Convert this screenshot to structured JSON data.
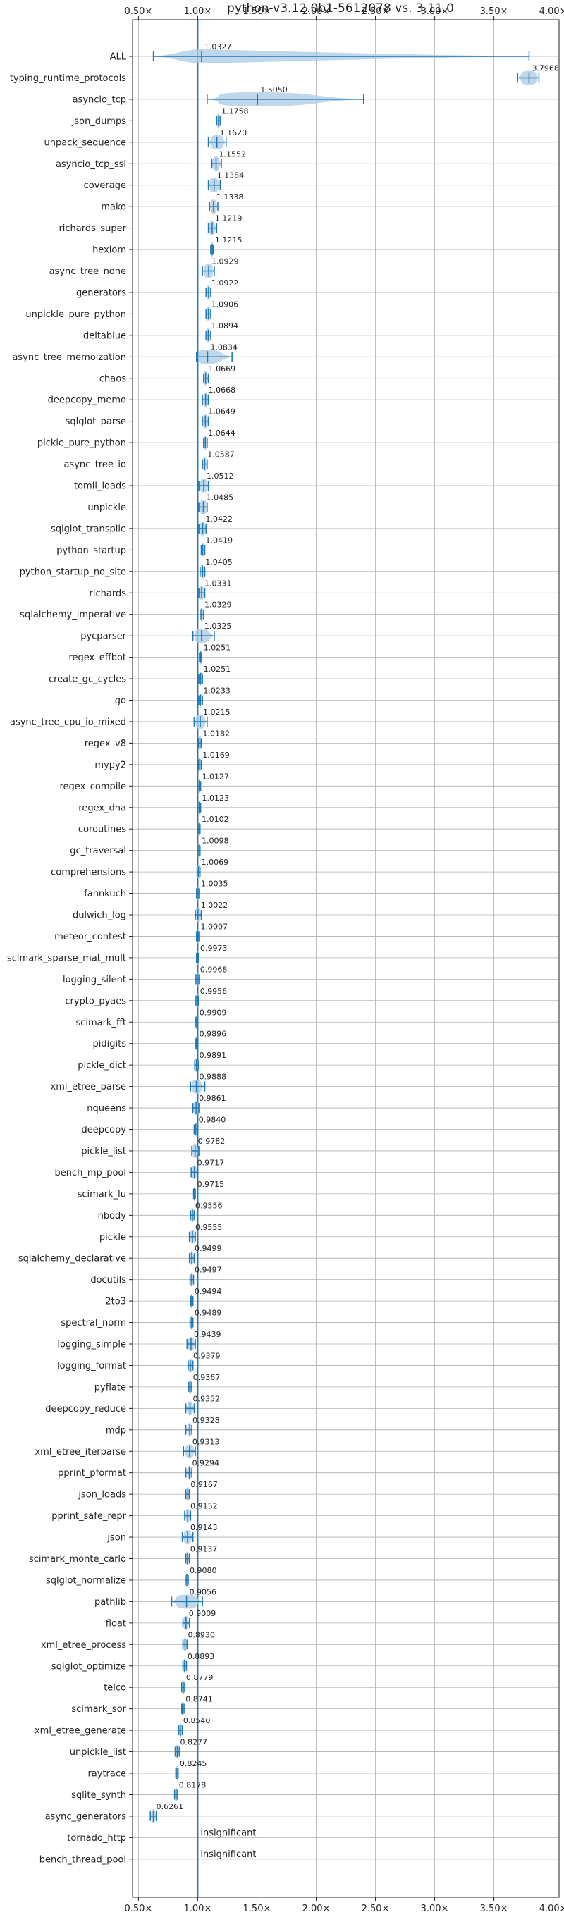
{
  "colors": {
    "accent": "#1f77b4",
    "violin": "#aecde6",
    "grid": "#b0b0b0"
  },
  "chart_data": {
    "type": "violin",
    "title": "python-v3.12.0b1-5612078 vs. 3.11.0",
    "xlim": [
      0.45,
      4.05
    ],
    "x_ticks": [
      0.5,
      1.0,
      1.5,
      2.0,
      2.5,
      3.0,
      3.5,
      4.0
    ],
    "x_tick_labels": [
      "0.50×",
      "1.00×",
      "1.50×",
      "2.00×",
      "2.50×",
      "3.00×",
      "3.50×",
      "4.00×"
    ],
    "x_tick_position": "top and bottom",
    "grid": true,
    "reference_line": 1.0,
    "insignificant_label": "insignificant",
    "benchmarks": [
      {
        "name": "ALL",
        "value": 1.0327,
        "label": "1.0327",
        "lo": 0.6261,
        "hi": 3.7968,
        "spread": 0.13
      },
      {
        "name": "typing_runtime_protocols",
        "value": 3.7968,
        "label": "3.7968",
        "lo": 3.7,
        "hi": 3.88,
        "spread": 0.09
      },
      {
        "name": "asyncio_tcp",
        "value": 1.505,
        "label": "1.5050",
        "lo": 1.08,
        "hi": 2.4,
        "spread": 0.5
      },
      {
        "name": "json_dumps",
        "value": 1.1758,
        "label": "1.1758",
        "lo": 1.16,
        "hi": 1.19,
        "spread": 0.02
      },
      {
        "name": "unpack_sequence",
        "value": 1.162,
        "label": "1.1620",
        "lo": 1.09,
        "hi": 1.24,
        "spread": 0.07
      },
      {
        "name": "asyncio_tcp_ssl",
        "value": 1.1552,
        "label": "1.1552",
        "lo": 1.12,
        "hi": 1.2,
        "spread": 0.04
      },
      {
        "name": "coverage",
        "value": 1.1384,
        "label": "1.1384",
        "lo": 1.09,
        "hi": 1.19,
        "spread": 0.05
      },
      {
        "name": "mako",
        "value": 1.1338,
        "label": "1.1338",
        "lo": 1.1,
        "hi": 1.17,
        "spread": 0.035
      },
      {
        "name": "richards_super",
        "value": 1.1219,
        "label": "1.1219",
        "lo": 1.09,
        "hi": 1.16,
        "spread": 0.035
      },
      {
        "name": "hexiom",
        "value": 1.1215,
        "label": "1.1215",
        "lo": 1.11,
        "hi": 1.13,
        "spread": 0.01
      },
      {
        "name": "async_tree_none",
        "value": 1.0929,
        "label": "1.0929",
        "lo": 1.04,
        "hi": 1.14,
        "spread": 0.05
      },
      {
        "name": "generators",
        "value": 1.0922,
        "label": "1.0922",
        "lo": 1.07,
        "hi": 1.11,
        "spread": 0.02
      },
      {
        "name": "unpickle_pure_python",
        "value": 1.0906,
        "label": "1.0906",
        "lo": 1.07,
        "hi": 1.11,
        "spread": 0.02
      },
      {
        "name": "deltablue",
        "value": 1.0894,
        "label": "1.0894",
        "lo": 1.07,
        "hi": 1.11,
        "spread": 0.02
      },
      {
        "name": "async_tree_memoization",
        "value": 1.0834,
        "label": "1.0834",
        "lo": 0.99,
        "hi": 1.29,
        "spread": 0.13
      },
      {
        "name": "chaos",
        "value": 1.0669,
        "label": "1.0669",
        "lo": 1.05,
        "hi": 1.09,
        "spread": 0.02
      },
      {
        "name": "deepcopy_memo",
        "value": 1.0668,
        "label": "1.0668",
        "lo": 1.04,
        "hi": 1.09,
        "spread": 0.03
      },
      {
        "name": "sqlglot_parse",
        "value": 1.0649,
        "label": "1.0649",
        "lo": 1.04,
        "hi": 1.09,
        "spread": 0.03
      },
      {
        "name": "pickle_pure_python",
        "value": 1.0644,
        "label": "1.0644",
        "lo": 1.05,
        "hi": 1.08,
        "spread": 0.015
      },
      {
        "name": "async_tree_io",
        "value": 1.0587,
        "label": "1.0587",
        "lo": 1.04,
        "hi": 1.08,
        "spread": 0.02
      },
      {
        "name": "tomli_loads",
        "value": 1.0512,
        "label": "1.0512",
        "lo": 1.01,
        "hi": 1.09,
        "spread": 0.04
      },
      {
        "name": "unpickle",
        "value": 1.0485,
        "label": "1.0485",
        "lo": 1.01,
        "hi": 1.08,
        "spread": 0.04
      },
      {
        "name": "sqlglot_transpile",
        "value": 1.0422,
        "label": "1.0422",
        "lo": 1.01,
        "hi": 1.07,
        "spread": 0.03
      },
      {
        "name": "python_startup",
        "value": 1.0419,
        "label": "1.0419",
        "lo": 1.03,
        "hi": 1.06,
        "spread": 0.015
      },
      {
        "name": "python_startup_no_site",
        "value": 1.0405,
        "label": "1.0405",
        "lo": 1.02,
        "hi": 1.06,
        "spread": 0.02
      },
      {
        "name": "richards",
        "value": 1.0331,
        "label": "1.0331",
        "lo": 1.01,
        "hi": 1.06,
        "spread": 0.025
      },
      {
        "name": "sqlalchemy_imperative",
        "value": 1.0329,
        "label": "1.0329",
        "lo": 1.02,
        "hi": 1.05,
        "spread": 0.015
      },
      {
        "name": "pycparser",
        "value": 1.0325,
        "label": "1.0325",
        "lo": 0.96,
        "hi": 1.14,
        "spread": 0.08
      },
      {
        "name": "regex_effbot",
        "value": 1.0251,
        "label": "1.0251",
        "lo": 1.015,
        "hi": 1.035,
        "spread": 0.01
      },
      {
        "name": "create_gc_cycles",
        "value": 1.0251,
        "label": "1.0251",
        "lo": 1.01,
        "hi": 1.04,
        "spread": 0.012
      },
      {
        "name": "go",
        "value": 1.0233,
        "label": "1.0233",
        "lo": 1.01,
        "hi": 1.04,
        "spread": 0.012
      },
      {
        "name": "async_tree_cpu_io_mixed",
        "value": 1.0215,
        "label": "1.0215",
        "lo": 0.97,
        "hi": 1.08,
        "spread": 0.05
      },
      {
        "name": "regex_v8",
        "value": 1.0182,
        "label": "1.0182",
        "lo": 1.005,
        "hi": 1.03,
        "spread": 0.012
      },
      {
        "name": "mypy2",
        "value": 1.0169,
        "label": "1.0169",
        "lo": 1.005,
        "hi": 1.03,
        "spread": 0.012
      },
      {
        "name": "regex_compile",
        "value": 1.0127,
        "label": "1.0127",
        "lo": 1.0,
        "hi": 1.025,
        "spread": 0.012
      },
      {
        "name": "regex_dna",
        "value": 1.0123,
        "label": "1.0123",
        "lo": 1.0,
        "hi": 1.025,
        "spread": 0.012
      },
      {
        "name": "coroutines",
        "value": 1.0102,
        "label": "1.0102",
        "lo": 1.0,
        "hi": 1.02,
        "spread": 0.01
      },
      {
        "name": "gc_traversal",
        "value": 1.0098,
        "label": "1.0098",
        "lo": 0.998,
        "hi": 1.02,
        "spread": 0.01
      },
      {
        "name": "comprehensions",
        "value": 1.0069,
        "label": "1.0069",
        "lo": 0.995,
        "hi": 1.02,
        "spread": 0.012
      },
      {
        "name": "fannkuch",
        "value": 1.0035,
        "label": "1.0035",
        "lo": 0.99,
        "hi": 1.015,
        "spread": 0.012
      },
      {
        "name": "dulwich_log",
        "value": 1.0022,
        "label": "1.0022",
        "lo": 0.98,
        "hi": 1.03,
        "spread": 0.025
      },
      {
        "name": "meteor_contest",
        "value": 1.0007,
        "label": "1.0007",
        "lo": 0.99,
        "hi": 1.01,
        "spread": 0.01
      },
      {
        "name": "scimark_sparse_mat_mult",
        "value": 0.9973,
        "label": "0.9973",
        "lo": 0.99,
        "hi": 1.005,
        "spread": 0.008
      },
      {
        "name": "logging_silent",
        "value": 0.9968,
        "label": "0.9968",
        "lo": 0.985,
        "hi": 1.01,
        "spread": 0.01
      },
      {
        "name": "crypto_pyaes",
        "value": 0.9956,
        "label": "0.9956",
        "lo": 0.985,
        "hi": 1.005,
        "spread": 0.008
      },
      {
        "name": "scimark_fft",
        "value": 0.9909,
        "label": "0.9909",
        "lo": 0.98,
        "hi": 1.0,
        "spread": 0.008
      },
      {
        "name": "pidigits",
        "value": 0.9896,
        "label": "0.9896",
        "lo": 0.98,
        "hi": 1.0,
        "spread": 0.008
      },
      {
        "name": "pickle_dict",
        "value": 0.9891,
        "label": "0.9891",
        "lo": 0.975,
        "hi": 1.005,
        "spread": 0.01
      },
      {
        "name": "xml_etree_parse",
        "value": 0.9888,
        "label": "0.9888",
        "lo": 0.94,
        "hi": 1.06,
        "spread": 0.05
      },
      {
        "name": "nqueens",
        "value": 0.9861,
        "label": "0.9861",
        "lo": 0.96,
        "hi": 1.01,
        "spread": 0.025
      },
      {
        "name": "deepcopy",
        "value": 0.984,
        "label": "0.9840",
        "lo": 0.97,
        "hi": 1.0,
        "spread": 0.015
      },
      {
        "name": "pickle_list",
        "value": 0.9782,
        "label": "0.9782",
        "lo": 0.95,
        "hi": 1.01,
        "spread": 0.03
      },
      {
        "name": "bench_mp_pool",
        "value": 0.9717,
        "label": "0.9717",
        "lo": 0.945,
        "hi": 1.0,
        "spread": 0.025
      },
      {
        "name": "scimark_lu",
        "value": 0.9715,
        "label": "0.9715",
        "lo": 0.965,
        "hi": 0.98,
        "spread": 0.006
      },
      {
        "name": "nbody",
        "value": 0.9556,
        "label": "0.9556",
        "lo": 0.94,
        "hi": 0.97,
        "spread": 0.012
      },
      {
        "name": "pickle",
        "value": 0.9555,
        "label": "0.9555",
        "lo": 0.93,
        "hi": 0.98,
        "spread": 0.025
      },
      {
        "name": "sqlalchemy_declarative",
        "value": 0.9499,
        "label": "0.9499",
        "lo": 0.93,
        "hi": 0.97,
        "spread": 0.015
      },
      {
        "name": "docutils",
        "value": 0.9497,
        "label": "0.9497",
        "lo": 0.935,
        "hi": 0.965,
        "spread": 0.012
      },
      {
        "name": "2to3",
        "value": 0.9494,
        "label": "0.9494",
        "lo": 0.94,
        "hi": 0.96,
        "spread": 0.008
      },
      {
        "name": "spectral_norm",
        "value": 0.9489,
        "label": "0.9489",
        "lo": 0.935,
        "hi": 0.96,
        "spread": 0.01
      },
      {
        "name": "logging_simple",
        "value": 0.9439,
        "label": "0.9439",
        "lo": 0.91,
        "hi": 0.98,
        "spread": 0.035
      },
      {
        "name": "logging_format",
        "value": 0.9379,
        "label": "0.9379",
        "lo": 0.92,
        "hi": 0.96,
        "spread": 0.018
      },
      {
        "name": "pyflate",
        "value": 0.9367,
        "label": "0.9367",
        "lo": 0.925,
        "hi": 0.95,
        "spread": 0.01
      },
      {
        "name": "deepcopy_reduce",
        "value": 0.9352,
        "label": "0.9352",
        "lo": 0.9,
        "hi": 0.97,
        "spread": 0.03
      },
      {
        "name": "mdp",
        "value": 0.9328,
        "label": "0.9328",
        "lo": 0.9,
        "hi": 0.95,
        "spread": 0.015
      },
      {
        "name": "xml_etree_iterparse",
        "value": 0.9313,
        "label": "0.9313",
        "lo": 0.88,
        "hi": 0.98,
        "spread": 0.045
      },
      {
        "name": "pprint_pformat",
        "value": 0.9294,
        "label": "0.9294",
        "lo": 0.9,
        "hi": 0.95,
        "spread": 0.02
      },
      {
        "name": "json_loads",
        "value": 0.9167,
        "label": "0.9167",
        "lo": 0.9,
        "hi": 0.93,
        "spread": 0.012
      },
      {
        "name": "pprint_safe_repr",
        "value": 0.9152,
        "label": "0.9152",
        "lo": 0.89,
        "hi": 0.94,
        "spread": 0.02
      },
      {
        "name": "json",
        "value": 0.9143,
        "label": "0.9143",
        "lo": 0.87,
        "hi": 0.96,
        "spread": 0.04
      },
      {
        "name": "scimark_monte_carlo",
        "value": 0.9137,
        "label": "0.9137",
        "lo": 0.9,
        "hi": 0.93,
        "spread": 0.01
      },
      {
        "name": "sqlglot_normalize",
        "value": 0.908,
        "label": "0.9080",
        "lo": 0.895,
        "hi": 0.92,
        "spread": 0.01
      },
      {
        "name": "pathlib",
        "value": 0.9056,
        "label": "0.9056",
        "lo": 0.78,
        "hi": 1.04,
        "spread": 0.12
      },
      {
        "name": "float",
        "value": 0.9009,
        "label": "0.9009",
        "lo": 0.875,
        "hi": 0.93,
        "spread": 0.025
      },
      {
        "name": "xml_etree_process",
        "value": 0.893,
        "label": "0.8930",
        "lo": 0.875,
        "hi": 0.91,
        "spread": 0.015
      },
      {
        "name": "sqlglot_optimize",
        "value": 0.8893,
        "label": "0.8893",
        "lo": 0.875,
        "hi": 0.905,
        "spread": 0.012
      },
      {
        "name": "telco",
        "value": 0.8779,
        "label": "0.8779",
        "lo": 0.865,
        "hi": 0.89,
        "spread": 0.01
      },
      {
        "name": "scimark_sor",
        "value": 0.8741,
        "label": "0.8741",
        "lo": 0.865,
        "hi": 0.885,
        "spread": 0.008
      },
      {
        "name": "xml_etree_generate",
        "value": 0.854,
        "label": "0.8540",
        "lo": 0.84,
        "hi": 0.87,
        "spread": 0.012
      },
      {
        "name": "unpickle_list",
        "value": 0.8277,
        "label": "0.8277",
        "lo": 0.81,
        "hi": 0.845,
        "spread": 0.015
      },
      {
        "name": "raytrace",
        "value": 0.8245,
        "label": "0.8245",
        "lo": 0.815,
        "hi": 0.835,
        "spread": 0.008
      },
      {
        "name": "sqlite_synth",
        "value": 0.8178,
        "label": "0.8178",
        "lo": 0.805,
        "hi": 0.83,
        "spread": 0.01
      },
      {
        "name": "async_generators",
        "value": 0.6261,
        "label": "0.6261",
        "lo": 0.6,
        "hi": 0.65,
        "spread": 0.02
      },
      {
        "name": "tornado_http",
        "insignificant": true
      },
      {
        "name": "bench_thread_pool",
        "insignificant": true
      }
    ]
  }
}
